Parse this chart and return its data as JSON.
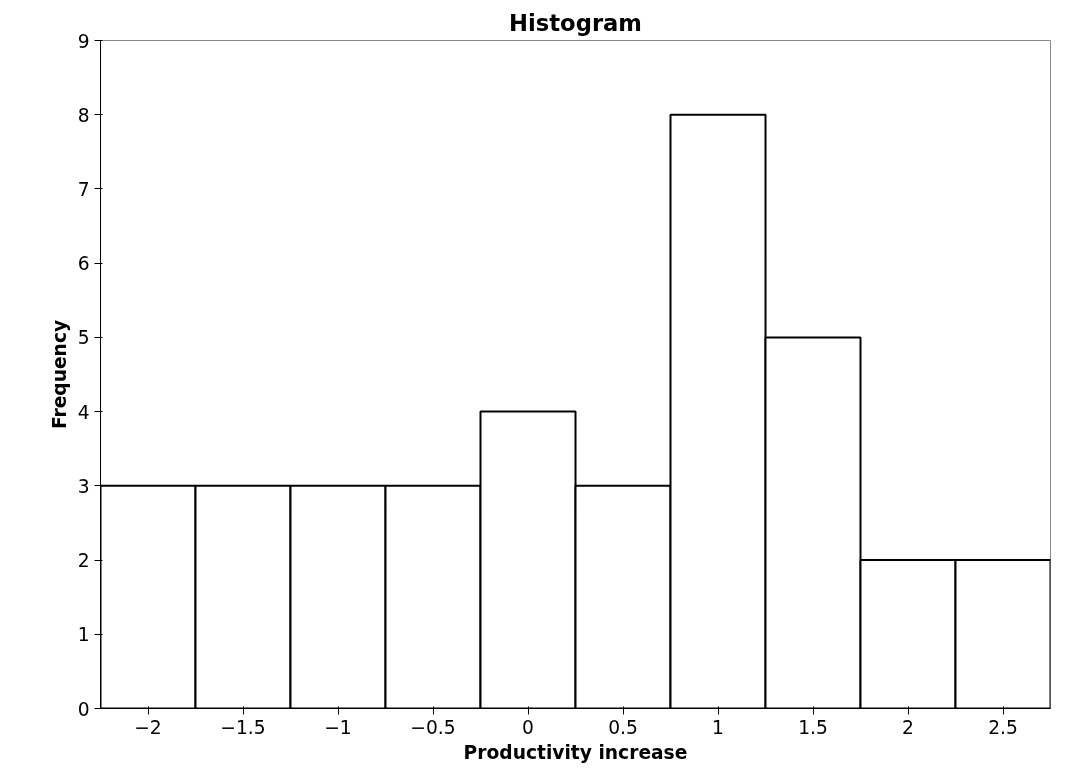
{
  "chart_data": {
    "type": "histogram",
    "title": "Histogram",
    "xlabel": "Productivity increase",
    "ylabel": "Frequency",
    "bins": [
      -2.25,
      -1.75,
      -1.25,
      -0.75,
      -0.25,
      0.25,
      0.75,
      1.25,
      1.75,
      2.25,
      2.75
    ],
    "values": [
      3,
      3,
      3,
      3,
      4,
      3,
      8,
      5,
      2,
      2
    ],
    "color": "#ffffff",
    "xlim": [
      -2.25,
      2.75
    ],
    "xticks": [
      -2,
      -1.5,
      -1,
      -0.5,
      0,
      0.5,
      1,
      1.5,
      2,
      2.5
    ],
    "ylim": [
      0,
      9
    ],
    "yticks": [
      0,
      1,
      2,
      3,
      4,
      5,
      6,
      7,
      8,
      9
    ],
    "grid": false
  }
}
